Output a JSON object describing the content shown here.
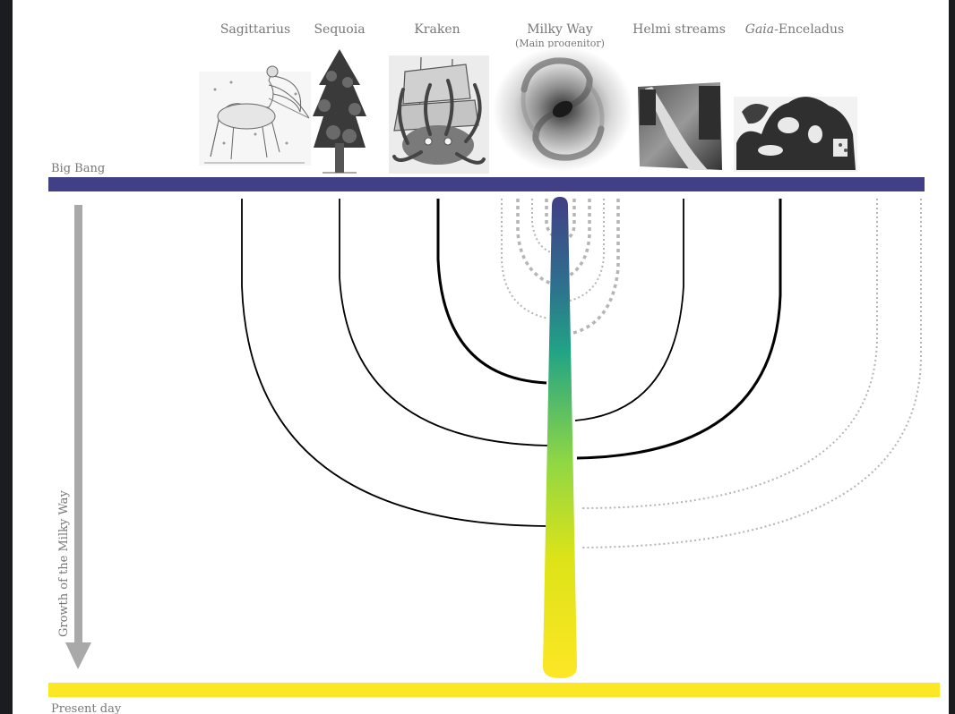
{
  "diagram": {
    "top_label": "Big Bang",
    "bottom_label": "Present day",
    "axis_label": "Growth of the Milky Way",
    "progenitors": [
      {
        "name": "Sagittarius",
        "name_italic": "",
        "subtitle": "",
        "image": "sagittarius-centaur-engraving",
        "track": "solid"
      },
      {
        "name": "Sequoia",
        "name_italic": "",
        "subtitle": "",
        "image": "sequoia-tree-engraving",
        "track": "solid"
      },
      {
        "name": "Kraken",
        "name_italic": "",
        "subtitle": "",
        "image": "kraken-ship-engraving",
        "track": "bold"
      },
      {
        "name": "Milky Way",
        "name_italic": "",
        "subtitle": "(Main progenitor)",
        "image": "spiral-galaxy",
        "track": "main"
      },
      {
        "name": "Helmi streams",
        "name_italic": "",
        "subtitle": "",
        "image": "river-stream-photo",
        "track": "solid"
      },
      {
        "name": "-Enceladus",
        "name_italic": "Gaia",
        "subtitle": "",
        "image": "gaia-enceladus-statue",
        "track": "bold"
      }
    ],
    "colors": {
      "background": "#ffffff",
      "big_bang_bar": "#413f85",
      "present_day_bar": "#fce725",
      "main_branch_gradient": [
        "#413f85",
        "#2b7a8e",
        "#22a884",
        "#7ad151",
        "#dde318",
        "#fde725"
      ],
      "unnamed_branch": "#b0b0b0",
      "axis_arrow": "#a9a9a9"
    }
  }
}
